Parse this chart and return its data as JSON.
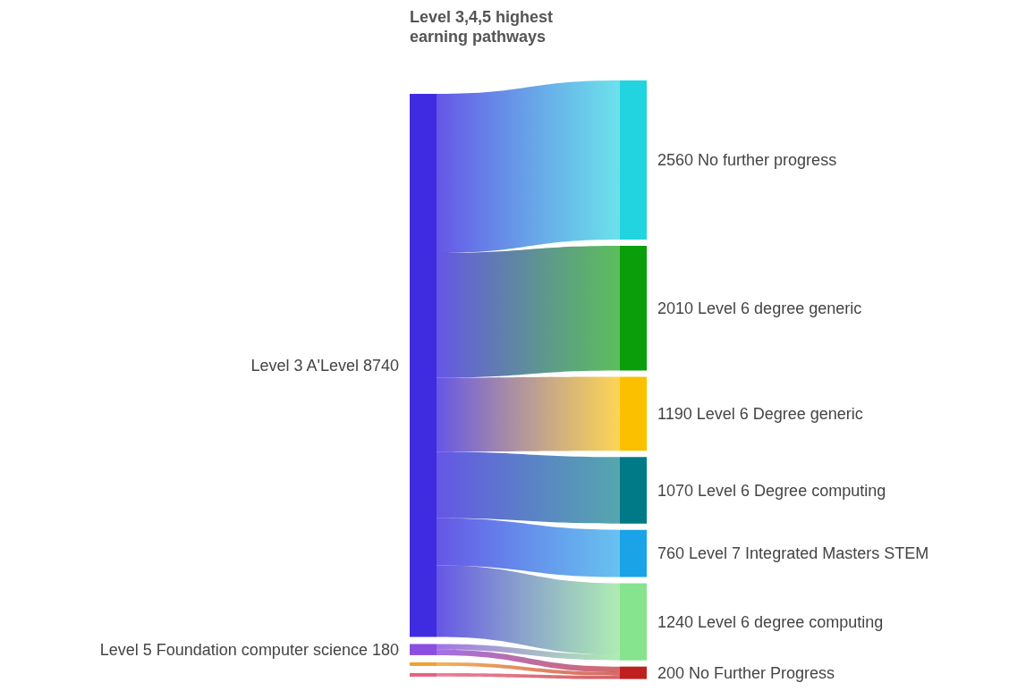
{
  "chart_data": {
    "type": "other",
    "title": "Level 3,4,5 highest earning pathways",
    "categories": [
      "Level 3 A'Level",
      "Level 5 Foundation computer science",
      null,
      null,
      "No further progress",
      "Level 6 degree generic",
      "Level 6 Degree generic",
      "Level 6 Degree computing",
      "Level 7 Integrated Masters STEM",
      "Level 6 degree computing",
      "No Further Progress"
    ],
    "colors": [
      "#3f2be0",
      "#8a4fe0",
      "#f0a030",
      "#e86080",
      "#22d3e0",
      "#0a9e0a",
      "#fbc000",
      "#007a86",
      "#1ba3e8",
      "#86e38e",
      "#c01f1f"
    ],
    "series": [
      {
        "values": [
          8740,
          180,
          null,
          null,
          null,
          null,
          null,
          null,
          null,
          null,
          null
        ],
        "value_labels": [
          "8740",
          "180",
          null,
          null,
          null,
          null,
          null,
          null,
          null,
          null,
          null
        ]
      },
      {
        "values": [
          null,
          null,
          null,
          null,
          2560,
          2010,
          1190,
          1070,
          760,
          1240,
          200
        ],
        "value_labels": [
          null,
          null,
          null,
          null,
          "2560",
          "2010",
          "1190",
          "1070",
          "760",
          "1240",
          "200"
        ]
      }
    ]
  }
}
